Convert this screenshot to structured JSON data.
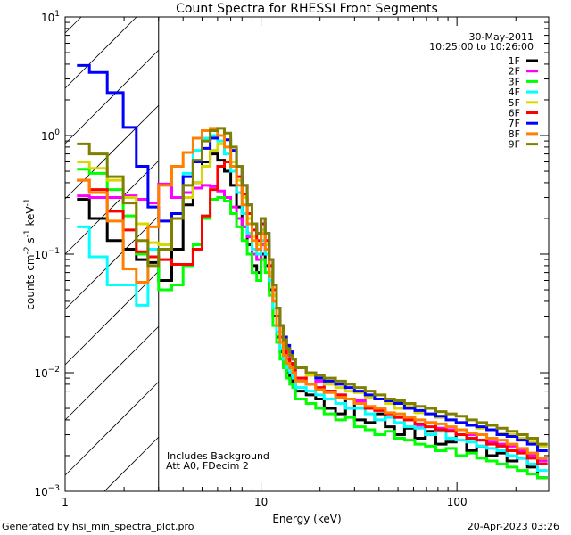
{
  "chart_data": {
    "type": "line",
    "title": "Count Spectra for RHESSI Front Segments",
    "xlabel": "Energy (keV)",
    "ylabel": "counts cm-2 s-1 keV-1",
    "xscale": "log",
    "yscale": "log",
    "xlim": [
      1,
      294
    ],
    "ylim": [
      0.001,
      10
    ],
    "x_ticks": [
      {
        "value": 1,
        "label": "1"
      },
      {
        "value": 10,
        "label": "10"
      },
      {
        "value": 100,
        "label": "100"
      }
    ],
    "y_ticks": [
      {
        "value": 0.001,
        "base": "10",
        "exp": "−3"
      },
      {
        "value": 0.01,
        "base": "10",
        "exp": "−2"
      },
      {
        "value": 0.1,
        "base": "10",
        "exp": "−1"
      },
      {
        "value": 1,
        "base": "10",
        "exp": "0"
      },
      {
        "value": 10,
        "base": "10",
        "exp": "1"
      }
    ],
    "legend_position": "top-right",
    "legend_header": [
      "30-May-2011",
      "10:25:00 to 10:26:00"
    ],
    "excluded_region_keV": [
      1,
      3
    ],
    "annotations": [
      "Includes Background",
      "Att A0, FDecim 2"
    ],
    "bin_edges_keV": [
      1.15,
      1.33,
      1.64,
      1.98,
      2.31,
      2.65,
      3.0,
      3.5,
      4.0,
      4.5,
      5.0,
      5.5,
      6.0,
      6.5,
      7.0,
      7.5,
      8.0,
      8.5,
      9.0,
      9.5,
      10,
      10.5,
      11,
      11.5,
      12,
      12.5,
      13,
      13.5,
      14,
      14.5,
      15,
      17,
      19,
      21,
      24,
      27,
      30,
      34,
      38,
      43,
      48,
      54,
      61,
      69,
      78,
      88,
      99,
      112,
      126,
      142,
      160,
      180,
      203,
      229,
      258,
      290
    ],
    "series": [
      {
        "name": "1F",
        "color": "#000000",
        "values": [
          0.29,
          0.2,
          0.13,
          0.11,
          0.09,
          0.085,
          0.06,
          0.11,
          0.26,
          0.4,
          0.6,
          0.7,
          0.62,
          0.5,
          0.38,
          0.25,
          0.17,
          0.12,
          0.08,
          0.07,
          0.1,
          0.08,
          0.05,
          0.03,
          0.02,
          0.015,
          0.012,
          0.01,
          0.009,
          0.008,
          0.007,
          0.0065,
          0.006,
          0.005,
          0.0045,
          0.006,
          0.004,
          0.0038,
          0.0045,
          0.0035,
          0.003,
          0.0034,
          0.0028,
          0.0032,
          0.0025,
          0.0026,
          0.003,
          0.0022,
          0.0024,
          0.002,
          0.0021,
          0.0018,
          0.0019,
          0.0016,
          0.0013
        ]
      },
      {
        "name": "2F",
        "color": "#ff00ff",
        "values": [
          0.31,
          0.3,
          0.3,
          0.31,
          0.29,
          0.27,
          0.39,
          0.3,
          0.33,
          0.36,
          0.38,
          0.37,
          0.34,
          0.3,
          0.25,
          0.2,
          0.17,
          0.14,
          0.1,
          0.09,
          0.12,
          0.1,
          0.07,
          0.045,
          0.03,
          0.02,
          0.016,
          0.014,
          0.012,
          0.011,
          0.009,
          0.008,
          0.0085,
          0.007,
          0.0065,
          0.006,
          0.0058,
          0.005,
          0.005,
          0.0045,
          0.0042,
          0.004,
          0.0036,
          0.0038,
          0.0034,
          0.0033,
          0.003,
          0.003,
          0.0027,
          0.0026,
          0.0025,
          0.0024,
          0.0022,
          0.002,
          0.0018
        ]
      },
      {
        "name": "3F",
        "color": "#00ff00",
        "values": [
          0.52,
          0.48,
          0.35,
          0.21,
          0.1,
          0.095,
          0.05,
          0.055,
          0.08,
          0.12,
          0.2,
          0.29,
          0.3,
          0.28,
          0.22,
          0.17,
          0.13,
          0.1,
          0.07,
          0.06,
          0.09,
          0.07,
          0.045,
          0.025,
          0.018,
          0.013,
          0.011,
          0.009,
          0.008,
          0.0075,
          0.006,
          0.0055,
          0.005,
          0.0045,
          0.004,
          0.0042,
          0.0035,
          0.0033,
          0.003,
          0.0032,
          0.0028,
          0.0027,
          0.0025,
          0.0024,
          0.0022,
          0.0023,
          0.002,
          0.0021,
          0.0019,
          0.0018,
          0.0017,
          0.0016,
          0.0015,
          0.0014,
          0.0013
        ]
      },
      {
        "name": "4F",
        "color": "#00ffff",
        "values": [
          0.17,
          0.095,
          0.055,
          0.055,
          0.037,
          0.11,
          0.11,
          0.22,
          0.48,
          0.75,
          0.95,
          1.0,
          0.9,
          0.7,
          0.5,
          0.33,
          0.22,
          0.15,
          0.11,
          0.1,
          0.13,
          0.1,
          0.06,
          0.035,
          0.022,
          0.016,
          0.013,
          0.011,
          0.01,
          0.009,
          0.0075,
          0.007,
          0.0065,
          0.006,
          0.0055,
          0.005,
          0.005,
          0.0045,
          0.004,
          0.0042,
          0.0038,
          0.0035,
          0.0034,
          0.003,
          0.0032,
          0.0028,
          0.0027,
          0.0026,
          0.0024,
          0.0023,
          0.0022,
          0.002,
          0.0019,
          0.0017,
          0.0015
        ]
      },
      {
        "name": "5F",
        "color": "#d8d800",
        "values": [
          0.6,
          0.53,
          0.42,
          0.3,
          0.18,
          0.125,
          0.12,
          0.22,
          0.3,
          0.4,
          0.55,
          0.75,
          0.85,
          0.8,
          0.6,
          0.42,
          0.3,
          0.2,
          0.14,
          0.12,
          0.16,
          0.12,
          0.07,
          0.045,
          0.03,
          0.022,
          0.018,
          0.016,
          0.014,
          0.013,
          0.011,
          0.0095,
          0.009,
          0.008,
          0.0075,
          0.007,
          0.0068,
          0.0062,
          0.006,
          0.0055,
          0.005,
          0.0052,
          0.0046,
          0.0045,
          0.0042,
          0.004,
          0.0038,
          0.0036,
          0.0034,
          0.0033,
          0.0031,
          0.003,
          0.0028,
          0.0026,
          0.0024
        ]
      },
      {
        "name": "6F",
        "color": "#ff0000",
        "values": [
          0.42,
          0.35,
          0.23,
          0.16,
          0.105,
          0.095,
          0.09,
          0.082,
          0.082,
          0.11,
          0.21,
          0.35,
          0.55,
          0.6,
          0.55,
          0.45,
          0.32,
          0.22,
          0.16,
          0.13,
          0.18,
          0.13,
          0.08,
          0.05,
          0.03,
          0.02,
          0.016,
          0.013,
          0.012,
          0.011,
          0.009,
          0.008,
          0.0075,
          0.007,
          0.0065,
          0.006,
          0.0055,
          0.005,
          0.0048,
          0.0045,
          0.0042,
          0.004,
          0.0037,
          0.0035,
          0.0033,
          0.0032,
          0.003,
          0.0028,
          0.0027,
          0.0025,
          0.0024,
          0.0022,
          0.0021,
          0.0019,
          0.0017
        ]
      },
      {
        "name": "7F",
        "color": "#0000ff",
        "values": [
          3.9,
          3.4,
          2.3,
          1.17,
          0.55,
          0.25,
          0.19,
          0.22,
          0.45,
          0.6,
          0.78,
          0.95,
          1.0,
          0.92,
          0.75,
          0.55,
          0.38,
          0.26,
          0.18,
          0.15,
          0.2,
          0.15,
          0.09,
          0.055,
          0.035,
          0.025,
          0.02,
          0.017,
          0.015,
          0.013,
          0.011,
          0.01,
          0.009,
          0.0085,
          0.008,
          0.0075,
          0.007,
          0.0065,
          0.006,
          0.0058,
          0.0055,
          0.005,
          0.0048,
          0.0045,
          0.0043,
          0.004,
          0.0038,
          0.0036,
          0.0035,
          0.0033,
          0.003,
          0.0029,
          0.0027,
          0.0025,
          0.0022
        ]
      },
      {
        "name": "8F",
        "color": "#ff8000",
        "values": [
          0.42,
          0.33,
          0.19,
          0.075,
          0.058,
          0.17,
          0.38,
          0.55,
          0.72,
          0.95,
          1.1,
          1.15,
          1.0,
          0.8,
          0.55,
          0.38,
          0.26,
          0.18,
          0.13,
          0.11,
          0.15,
          0.11,
          0.065,
          0.04,
          0.025,
          0.018,
          0.014,
          0.012,
          0.011,
          0.01,
          0.0085,
          0.008,
          0.0072,
          0.0068,
          0.0062,
          0.006,
          0.0055,
          0.0052,
          0.005,
          0.0046,
          0.0045,
          0.0042,
          0.004,
          0.0038,
          0.0037,
          0.0035,
          0.0033,
          0.0031,
          0.003,
          0.0028,
          0.0027,
          0.0025,
          0.0023,
          0.0021,
          0.0019
        ]
      },
      {
        "name": "9F",
        "color": "#808000",
        "values": [
          0.85,
          0.7,
          0.45,
          0.27,
          0.13,
          0.08,
          0.11,
          0.2,
          0.38,
          0.62,
          0.9,
          1.1,
          1.15,
          1.05,
          0.8,
          0.55,
          0.38,
          0.26,
          0.18,
          0.15,
          0.2,
          0.15,
          0.09,
          0.055,
          0.035,
          0.025,
          0.019,
          0.016,
          0.014,
          0.013,
          0.011,
          0.01,
          0.0095,
          0.009,
          0.0085,
          0.008,
          0.0075,
          0.007,
          0.0065,
          0.006,
          0.0058,
          0.0055,
          0.0052,
          0.005,
          0.0047,
          0.0045,
          0.0043,
          0.004,
          0.0038,
          0.0036,
          0.0034,
          0.0032,
          0.003,
          0.0028,
          0.0025
        ]
      }
    ]
  },
  "ylabel_parts": {
    "a": "counts cm",
    "e1": "−2",
    "b": " s",
    "e2": "−1",
    "c": " keV",
    "e3": "−1"
  },
  "footer": {
    "left": "Generated by hsi_min_spectra_plot.pro",
    "right": "20-Apr-2023 03:26"
  }
}
